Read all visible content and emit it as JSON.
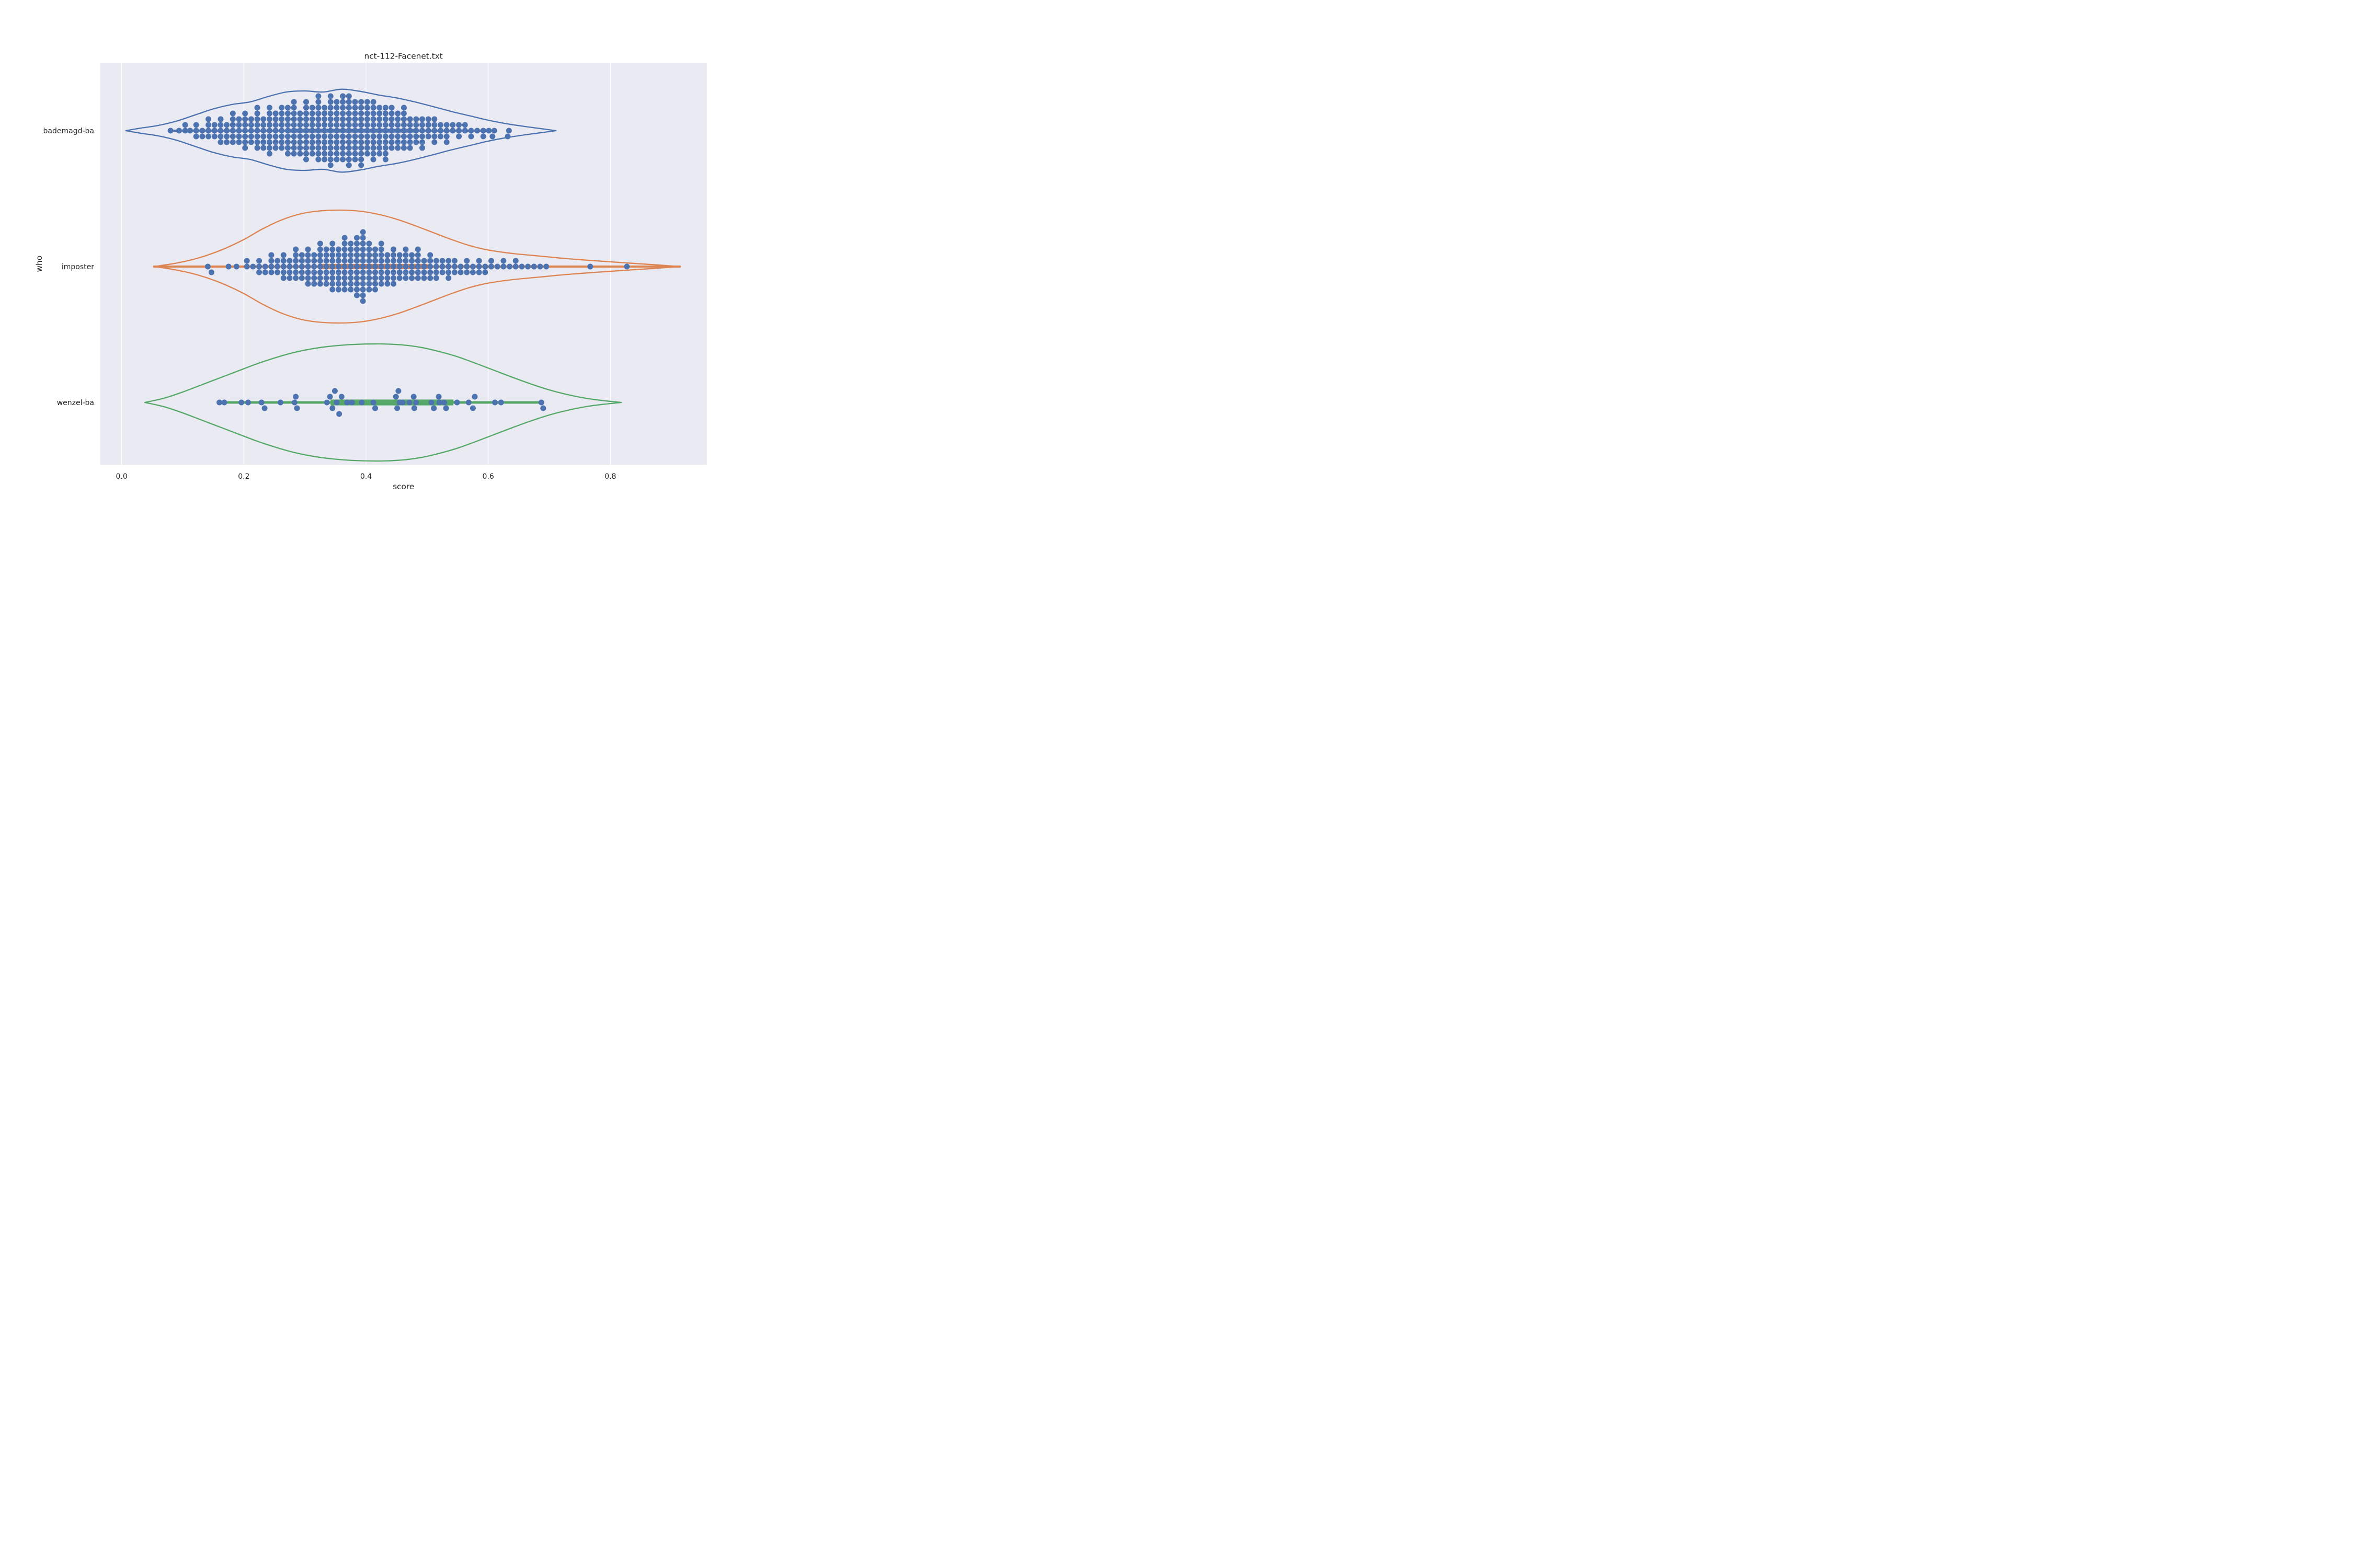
{
  "title": "nct-112-Facenet.txt",
  "axes": {
    "xlabel": "score",
    "ylabel": "who",
    "xticks": [
      0.0,
      0.2,
      0.4,
      0.6,
      0.8
    ],
    "xtick_labels": [
      "0.0",
      "0.2",
      "0.4",
      "0.6",
      "0.8"
    ],
    "categories": [
      "bademagd-ba",
      "imposter",
      "wenzel-ba"
    ],
    "xlim": [
      -0.035,
      0.958
    ],
    "grid": "vertical-white-lines"
  },
  "colors": {
    "figure_background": "#ffffff",
    "plot_background": "#eaeaf2",
    "grid_line": "#ffffff",
    "text": "#262626",
    "series_blue": "#4c72b0",
    "series_orange": "#dd8452",
    "series_green": "#55a868",
    "swarm_dot": "#4c72b0"
  },
  "chart_data": {
    "type": "violin",
    "overlay": "swarm",
    "title": "nct-112-Facenet.txt",
    "xlabel": "score",
    "ylabel": "who",
    "xlim": [
      -0.035,
      0.958
    ],
    "categories": [
      "bademagd-ba",
      "imposter",
      "wenzel-ba"
    ],
    "series": [
      {
        "who": "bademagd-ba",
        "color": "#4c72b0",
        "violin_range": [
          0.007,
          0.711
        ],
        "outline": [
          [
            0.007,
            0
          ],
          [
            0.03,
            14
          ],
          [
            0.06,
            30
          ],
          [
            0.09,
            55
          ],
          [
            0.12,
            90
          ],
          [
            0.15,
            125
          ],
          [
            0.18,
            150
          ],
          [
            0.21,
            165
          ],
          [
            0.24,
            196
          ],
          [
            0.27,
            222
          ],
          [
            0.3,
            228
          ],
          [
            0.33,
            222
          ],
          [
            0.36,
            238
          ],
          [
            0.39,
            226
          ],
          [
            0.42,
            205
          ],
          [
            0.45,
            188
          ],
          [
            0.48,
            165
          ],
          [
            0.51,
            138
          ],
          [
            0.54,
            110
          ],
          [
            0.57,
            85
          ],
          [
            0.6,
            60
          ],
          [
            0.63,
            40
          ],
          [
            0.66,
            24
          ],
          [
            0.69,
            10
          ],
          [
            0.711,
            0
          ]
        ],
        "inner": {
          "whisker": [
            0.08,
            0.601
          ],
          "box": [
            0.27,
            0.48
          ]
        },
        "swarm_columns": [
          [
            0.08,
            1
          ],
          [
            0.094,
            1
          ],
          [
            0.104,
            2
          ],
          [
            0.112,
            1
          ],
          [
            0.122,
            3
          ],
          [
            0.132,
            2
          ],
          [
            0.142,
            4
          ],
          [
            0.152,
            3
          ],
          [
            0.162,
            5
          ],
          [
            0.172,
            4
          ],
          [
            0.182,
            6
          ],
          [
            0.192,
            5
          ],
          [
            0.202,
            7
          ],
          [
            0.212,
            5
          ],
          [
            0.222,
            8
          ],
          [
            0.232,
            6
          ],
          [
            0.242,
            9
          ],
          [
            0.252,
            7
          ],
          [
            0.262,
            8
          ],
          [
            0.272,
            9
          ],
          [
            0.282,
            10
          ],
          [
            0.292,
            8
          ],
          [
            0.302,
            11
          ],
          [
            0.312,
            9
          ],
          [
            0.322,
            12
          ],
          [
            0.332,
            10
          ],
          [
            0.342,
            13
          ],
          [
            0.352,
            11
          ],
          [
            0.362,
            12
          ],
          [
            0.372,
            13
          ],
          [
            0.382,
            11
          ],
          [
            0.392,
            12
          ],
          [
            0.402,
            10
          ],
          [
            0.412,
            11
          ],
          [
            0.422,
            9
          ],
          [
            0.432,
            10
          ],
          [
            0.442,
            8
          ],
          [
            0.452,
            7
          ],
          [
            0.462,
            8
          ],
          [
            0.472,
            6
          ],
          [
            0.482,
            5
          ],
          [
            0.492,
            6
          ],
          [
            0.502,
            4
          ],
          [
            0.512,
            5
          ],
          [
            0.522,
            3
          ],
          [
            0.532,
            4
          ],
          [
            0.542,
            2
          ],
          [
            0.552,
            3
          ],
          [
            0.562,
            2
          ],
          [
            0.572,
            2
          ],
          [
            0.582,
            1
          ],
          [
            0.592,
            2
          ],
          [
            0.601,
            1
          ]
        ],
        "extra_points": [
          [
            0.61,
            0
          ],
          [
            0.607,
            -1
          ],
          [
            0.634,
            0
          ],
          [
            0.632,
            -1
          ]
        ]
      },
      {
        "who": "imposter",
        "color": "#dd8452",
        "violin_range": [
          0.053,
          0.914
        ],
        "outline": [
          [
            0.053,
            0
          ],
          [
            0.08,
            14
          ],
          [
            0.11,
            35
          ],
          [
            0.14,
            65
          ],
          [
            0.17,
            105
          ],
          [
            0.2,
            155
          ],
          [
            0.23,
            215
          ],
          [
            0.26,
            265
          ],
          [
            0.29,
            300
          ],
          [
            0.32,
            318
          ],
          [
            0.357,
            324
          ],
          [
            0.39,
            318
          ],
          [
            0.42,
            300
          ],
          [
            0.45,
            272
          ],
          [
            0.48,
            235
          ],
          [
            0.51,
            195
          ],
          [
            0.54,
            155
          ],
          [
            0.57,
            120
          ],
          [
            0.6,
            95
          ],
          [
            0.64,
            75
          ],
          [
            0.685,
            60
          ],
          [
            0.73,
            45
          ],
          [
            0.78,
            32
          ],
          [
            0.83,
            20
          ],
          [
            0.87,
            11
          ],
          [
            0.914,
            0
          ]
        ],
        "inner": {
          "whisker": [
            0.053,
            0.914
          ],
          "box": [
            0.322,
            0.501
          ]
        },
        "swarm_columns": [
          [
            0.175,
            1
          ],
          [
            0.188,
            1
          ],
          [
            0.205,
            2
          ],
          [
            0.215,
            1
          ],
          [
            0.225,
            3
          ],
          [
            0.235,
            2
          ],
          [
            0.245,
            4
          ],
          [
            0.255,
            3
          ],
          [
            0.265,
            5
          ],
          [
            0.275,
            4
          ],
          [
            0.285,
            6
          ],
          [
            0.295,
            5
          ],
          [
            0.305,
            7
          ],
          [
            0.315,
            6
          ],
          [
            0.325,
            8
          ],
          [
            0.335,
            7
          ],
          [
            0.345,
            9
          ],
          [
            0.355,
            8
          ],
          [
            0.365,
            10
          ],
          [
            0.375,
            9
          ],
          [
            0.385,
            11
          ],
          [
            0.395,
            13
          ],
          [
            0.405,
            9
          ],
          [
            0.415,
            8
          ],
          [
            0.425,
            8
          ],
          [
            0.435,
            6
          ],
          [
            0.445,
            7
          ],
          [
            0.455,
            5
          ],
          [
            0.465,
            6
          ],
          [
            0.475,
            5
          ],
          [
            0.485,
            6
          ],
          [
            0.495,
            4
          ],
          [
            0.505,
            5
          ],
          [
            0.515,
            4
          ],
          [
            0.525,
            3
          ],
          [
            0.535,
            4
          ],
          [
            0.545,
            3
          ],
          [
            0.555,
            2
          ],
          [
            0.565,
            3
          ],
          [
            0.575,
            2
          ],
          [
            0.585,
            3
          ],
          [
            0.595,
            2
          ],
          [
            0.605,
            2
          ],
          [
            0.615,
            1
          ],
          [
            0.625,
            2
          ],
          [
            0.635,
            1
          ],
          [
            0.645,
            2
          ],
          [
            0.655,
            1
          ],
          [
            0.665,
            1
          ],
          [
            0.675,
            1
          ],
          [
            0.685,
            1
          ],
          [
            0.695,
            1
          ]
        ],
        "extra_points": [
          [
            0.141,
            0
          ],
          [
            0.147,
            -1
          ],
          [
            0.767,
            0
          ],
          [
            0.827,
            0
          ]
        ]
      },
      {
        "who": "wenzel-ba",
        "color": "#55a868",
        "violin_range": [
          0.038,
          0.818
        ],
        "outline": [
          [
            0.038,
            0
          ],
          [
            0.07,
            25
          ],
          [
            0.1,
            60
          ],
          [
            0.13,
            100
          ],
          [
            0.16,
            140
          ],
          [
            0.19,
            180
          ],
          [
            0.22,
            220
          ],
          [
            0.25,
            255
          ],
          [
            0.28,
            285
          ],
          [
            0.31,
            307
          ],
          [
            0.34,
            322
          ],
          [
            0.38,
            333
          ],
          [
            0.425,
            336
          ],
          [
            0.46,
            330
          ],
          [
            0.49,
            316
          ],
          [
            0.52,
            292
          ],
          [
            0.55,
            262
          ],
          [
            0.58,
            224
          ],
          [
            0.61,
            184
          ],
          [
            0.64,
            144
          ],
          [
            0.67,
            106
          ],
          [
            0.7,
            72
          ],
          [
            0.73,
            45
          ],
          [
            0.76,
            24
          ],
          [
            0.79,
            10
          ],
          [
            0.818,
            0
          ]
        ],
        "inner": {
          "whisker": [
            0.163,
            0.683
          ],
          "box": [
            0.342,
            0.543
          ]
        },
        "swarm_columns": [],
        "extra_points": [
          [
            0.16,
            0
          ],
          [
            0.168,
            0
          ],
          [
            0.196,
            0
          ],
          [
            0.207,
            0
          ],
          [
            0.229,
            0
          ],
          [
            0.234,
            -1
          ],
          [
            0.26,
            0
          ],
          [
            0.283,
            0
          ],
          [
            0.285,
            1
          ],
          [
            0.287,
            -1
          ],
          [
            0.336,
            0
          ],
          [
            0.341,
            1
          ],
          [
            0.345,
            -1
          ],
          [
            0.349,
            2
          ],
          [
            0.352,
            0
          ],
          [
            0.356,
            -2
          ],
          [
            0.36,
            1
          ],
          [
            0.369,
            0
          ],
          [
            0.377,
            0
          ],
          [
            0.393,
            0
          ],
          [
            0.412,
            0
          ],
          [
            0.415,
            -1
          ],
          [
            0.449,
            1
          ],
          [
            0.451,
            -1
          ],
          [
            0.453,
            2
          ],
          [
            0.455,
            0
          ],
          [
            0.46,
            0
          ],
          [
            0.471,
            0
          ],
          [
            0.478,
            1
          ],
          [
            0.479,
            -1
          ],
          [
            0.482,
            0
          ],
          [
            0.507,
            0
          ],
          [
            0.511,
            -1
          ],
          [
            0.519,
            1
          ],
          [
            0.52,
            0
          ],
          [
            0.528,
            0
          ],
          [
            0.531,
            -1
          ],
          [
            0.549,
            0
          ],
          [
            0.568,
            0
          ],
          [
            0.575,
            -1
          ],
          [
            0.578,
            1
          ],
          [
            0.611,
            0
          ],
          [
            0.621,
            0
          ],
          [
            0.687,
            0
          ],
          [
            0.69,
            -1
          ]
        ]
      }
    ]
  }
}
